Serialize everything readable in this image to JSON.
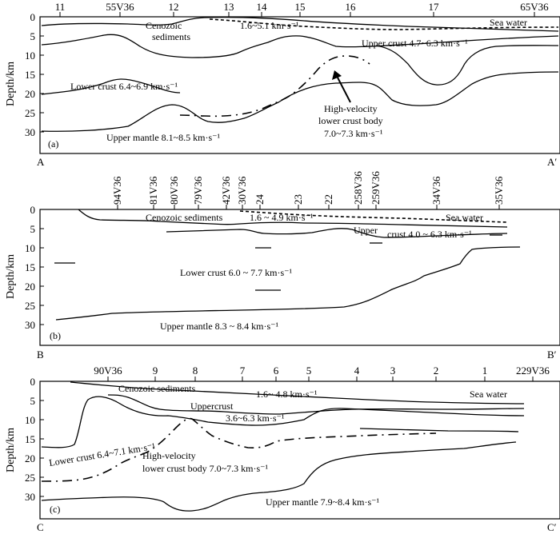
{
  "panel_a": {
    "top_ticks": [
      "11",
      "55V36",
      "12",
      "13",
      "14",
      "15",
      "16",
      "17",
      "65V36"
    ],
    "depth_ticks": [
      "0",
      "5",
      "10",
      "15",
      "20",
      "25",
      "30"
    ],
    "y_axis_label": "Depth/km",
    "panel_label": "(a)",
    "corner_left": "A",
    "corner_right": "A′",
    "labels": {
      "cenozoic_1": "Cenozoic",
      "cenozoic_2": "sediments",
      "sed_velocity": "1.6~5.1 km·s⁻¹",
      "sea_water": "Sea water",
      "upper_crust": "Upper crust  4.7~6.3 km·s⁻¹",
      "lower_crust": "Lower crust  6.4~6.9 km·s⁻¹",
      "hvlc_1": "High-velocity",
      "hvlc_2": "lower crust body",
      "hvlc_3": "7.0~7.3 km·s⁻¹",
      "upper_mantle": "Upper mantle  8.1~8.5 km·s⁻¹"
    }
  },
  "panel_b": {
    "top_ticks": [
      "94V36",
      "81V36",
      "80V36",
      "79V36",
      "42V36",
      "30V36",
      "24",
      "23",
      "22",
      "258V36",
      "259V36",
      "34V36",
      "35V36"
    ],
    "depth_ticks": [
      "0",
      "5",
      "10",
      "15",
      "20",
      "25",
      "30"
    ],
    "y_axis_label": "Depth/km",
    "panel_label": "(b)",
    "corner_left": "B",
    "corner_right": "B′",
    "labels": {
      "cenozoic": "Cenozoic sediments",
      "sed_velocity": "1.6 ~ 4.9 km·s⁻¹",
      "sea_water": "Sea water",
      "upper": "Upper",
      "crust": "crust   4.0 ~ 6.3 km·s⁻¹",
      "lower_crust": "Lower crust  6.0 ~ 7.7 km·s⁻¹",
      "upper_mantle": "Upper mantle  8.3 ~ 8.4 km·s⁻¹"
    }
  },
  "panel_c": {
    "top_ticks": [
      "90V36",
      "9",
      "8",
      "7",
      "6",
      "5",
      "4",
      "3",
      "2",
      "1",
      "229V36"
    ],
    "depth_ticks": [
      "0",
      "5",
      "10",
      "15",
      "20",
      "25",
      "30"
    ],
    "y_axis_label": "Depth/km",
    "panel_label": "(c)",
    "corner_left": "C",
    "corner_right": "C′",
    "labels": {
      "cenozoic": "Cenozoic sediments",
      "sed_velocity": "1.6~ 4.8 km·s⁻¹",
      "sea_water": "Sea water",
      "uppercrust": "Uppercrust",
      "upper_velocity": "3.6~6.3 km·s⁻¹",
      "lower_crust": "Lower crust 6.4~7.1 km·s⁻¹",
      "hvlc_1": "High-velocity",
      "hvlc_2": "lower crust body  7.0~7.3 km·s⁻¹",
      "upper_mantle": "Upper mantle 7.9~8.4 km·s⁻¹"
    }
  }
}
